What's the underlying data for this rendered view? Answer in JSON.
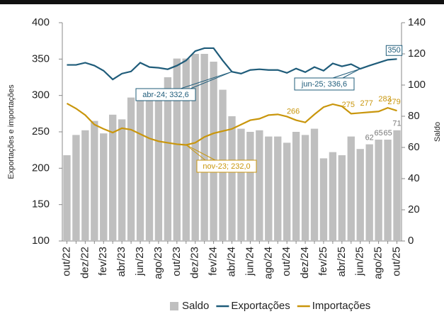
{
  "chart_data": {
    "type": "bar",
    "categories": [
      "out/22",
      null,
      "dez/22",
      null,
      "fev/23",
      null,
      "abr/23",
      null,
      "jun/23",
      null,
      "ago/23",
      null,
      "out/23",
      null,
      "dez/23",
      null,
      "fev/24",
      null,
      "abr/24",
      null,
      "jun/24",
      null,
      "ago/24",
      null,
      "out/24",
      null,
      "dez/24",
      null,
      "fev/25",
      null,
      "abr/25",
      null,
      "jun/25",
      null,
      "ago/25",
      null,
      "out/25"
    ],
    "series": [
      {
        "name": "Saldo",
        "type": "bar",
        "axis": "y2",
        "color": "#bfbfbf",
        "values": [
          55,
          68,
          71,
          77,
          69,
          81,
          78,
          92,
          90,
          91,
          92,
          105,
          117,
          117,
          120,
          120,
          115,
          97,
          80,
          72,
          70,
          71,
          67,
          67,
          63,
          70,
          68,
          72,
          53,
          57,
          55,
          67,
          59,
          62,
          65,
          65,
          71
        ],
        "value_labels": [
          null,
          null,
          null,
          null,
          null,
          null,
          null,
          null,
          null,
          null,
          null,
          null,
          null,
          null,
          null,
          null,
          null,
          null,
          null,
          null,
          null,
          null,
          null,
          null,
          null,
          null,
          null,
          null,
          null,
          null,
          null,
          null,
          null,
          "62",
          "65",
          "65",
          "71"
        ]
      },
      {
        "name": "Exportações",
        "type": "line",
        "color": "#1f5c7a",
        "values": [
          342,
          342,
          345,
          341,
          334,
          322,
          330,
          333,
          345,
          339,
          338,
          336,
          341,
          348,
          361,
          365,
          365,
          348,
          332.6,
          330,
          335,
          336,
          335,
          335,
          331,
          337,
          332,
          339,
          334,
          344,
          340,
          343,
          336.6,
          341,
          345,
          349,
          350
        ],
        "value_labels": [
          null,
          null,
          null,
          null,
          null,
          null,
          null,
          null,
          null,
          null,
          null,
          null,
          null,
          null,
          null,
          null,
          null,
          null,
          null,
          null,
          null,
          null,
          null,
          null,
          null,
          null,
          null,
          null,
          null,
          null,
          null,
          null,
          null,
          null,
          null,
          null,
          "350"
        ]
      },
      {
        "name": "Importações",
        "type": "line",
        "color": "#c9960c",
        "values": [
          289,
          282,
          273,
          260,
          254,
          249,
          255,
          253,
          247,
          241,
          237,
          235,
          233,
          232.0,
          235,
          243,
          248,
          251,
          254,
          260,
          266,
          268,
          273,
          274,
          271,
          266,
          263,
          274,
          284,
          288,
          285,
          275,
          276,
          277,
          278,
          283,
          279
        ],
        "value_labels": [
          null,
          null,
          null,
          null,
          null,
          null,
          null,
          null,
          null,
          null,
          null,
          null,
          null,
          null,
          null,
          null,
          null,
          null,
          null,
          null,
          null,
          null,
          null,
          null,
          null,
          "266",
          null,
          null,
          null,
          null,
          null,
          "275",
          null,
          "277",
          null,
          "283",
          "279"
        ]
      }
    ],
    "annotations": [
      "abr-24; 332,6",
      "jun-25; 336,6",
      "nov-23; 232,0"
    ],
    "ylabel": "Exportações e importações",
    "y2label": "Saldo",
    "ylim": [
      100,
      400
    ],
    "yticks": [
      100,
      150,
      200,
      250,
      300,
      350,
      400
    ],
    "y2lim": [
      0,
      140
    ],
    "y2ticks": [
      0,
      20,
      40,
      60,
      80,
      100,
      120,
      140
    ],
    "grid": false,
    "legend": "bottom"
  }
}
